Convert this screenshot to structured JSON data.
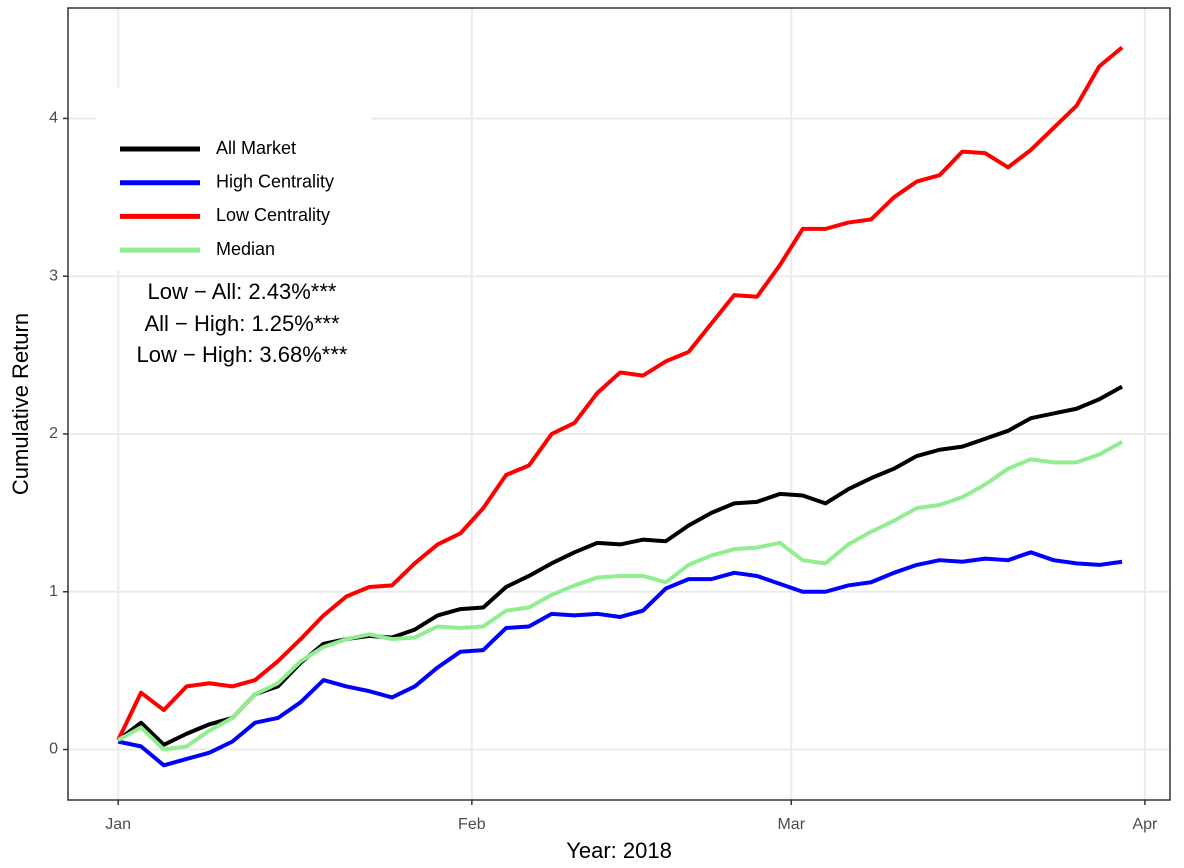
{
  "chart_data": {
    "type": "line",
    "x_label": "Year: 2018",
    "y_label": "Cumulative Return",
    "annotations": [
      "Low − All: 2.43%***",
      "All − High: 1.25%***",
      "Low − High: 3.68%***"
    ],
    "x": [
      1,
      3,
      5,
      7,
      9,
      11,
      13,
      15,
      17,
      19,
      21,
      23,
      25,
      27,
      29,
      31,
      33,
      35,
      37,
      39,
      41,
      43,
      45,
      47,
      49,
      51,
      53,
      55,
      57,
      59,
      61,
      63,
      65,
      67,
      69,
      71,
      73,
      75,
      77,
      79,
      81,
      83,
      85,
      87,
      89
    ],
    "series": [
      {
        "name": "All Market",
        "color": "#000000",
        "values": [
          0.06,
          0.17,
          0.03,
          0.1,
          0.16,
          0.2,
          0.35,
          0.4,
          0.55,
          0.67,
          0.7,
          0.72,
          0.71,
          0.76,
          0.85,
          0.89,
          0.9,
          1.03,
          1.1,
          1.18,
          1.25,
          1.31,
          1.3,
          1.33,
          1.32,
          1.42,
          1.5,
          1.56,
          1.57,
          1.62,
          1.61,
          1.56,
          1.65,
          1.72,
          1.78,
          1.86,
          1.9,
          1.92,
          1.97,
          2.02,
          2.1,
          2.13,
          2.16,
          2.22,
          2.3
        ]
      },
      {
        "name": "High Centrality",
        "color": "#0000ff",
        "values": [
          0.05,
          0.02,
          -0.1,
          -0.06,
          -0.02,
          0.05,
          0.17,
          0.2,
          0.3,
          0.44,
          0.4,
          0.37,
          0.33,
          0.4,
          0.52,
          0.62,
          0.63,
          0.77,
          0.78,
          0.86,
          0.85,
          0.86,
          0.84,
          0.88,
          1.02,
          1.08,
          1.08,
          1.12,
          1.1,
          1.05,
          1.0,
          1.0,
          1.04,
          1.06,
          1.12,
          1.17,
          1.2,
          1.19,
          1.21,
          1.2,
          1.25,
          1.2,
          1.18,
          1.17,
          1.19
        ]
      },
      {
        "name": "Low Centrality",
        "color": "#ff0000",
        "values": [
          0.06,
          0.36,
          0.25,
          0.4,
          0.42,
          0.4,
          0.44,
          0.56,
          0.7,
          0.85,
          0.97,
          1.03,
          1.04,
          1.18,
          1.3,
          1.37,
          1.53,
          1.74,
          1.8,
          2.0,
          2.07,
          2.26,
          2.39,
          2.37,
          2.46,
          2.52,
          2.7,
          2.88,
          2.87,
          3.07,
          3.3,
          3.3,
          3.34,
          3.36,
          3.5,
          3.6,
          3.64,
          3.79,
          3.78,
          3.69,
          3.8,
          3.94,
          4.08,
          4.33,
          4.45
        ]
      },
      {
        "name": "Median",
        "color": "#90ee90",
        "values": [
          0.06,
          0.14,
          0.0,
          0.02,
          0.12,
          0.2,
          0.35,
          0.42,
          0.56,
          0.65,
          0.7,
          0.73,
          0.7,
          0.71,
          0.78,
          0.77,
          0.78,
          0.88,
          0.9,
          0.98,
          1.04,
          1.09,
          1.1,
          1.1,
          1.06,
          1.17,
          1.23,
          1.27,
          1.28,
          1.31,
          1.2,
          1.18,
          1.3,
          1.38,
          1.45,
          1.53,
          1.55,
          1.6,
          1.68,
          1.78,
          1.84,
          1.82,
          1.82,
          1.87,
          1.95
        ]
      }
    ],
    "xlim": [
      -3.4,
      93.2
    ],
    "xticks": [
      {
        "value": 1,
        "label": "Jan"
      },
      {
        "value": 32,
        "label": "Feb"
      },
      {
        "value": 60,
        "label": "Mar"
      },
      {
        "value": 91,
        "label": "Apr"
      }
    ],
    "ylim": [
      -0.32,
      4.7
    ],
    "yticks": [
      0,
      1,
      2,
      3,
      4
    ],
    "grid": true
  }
}
